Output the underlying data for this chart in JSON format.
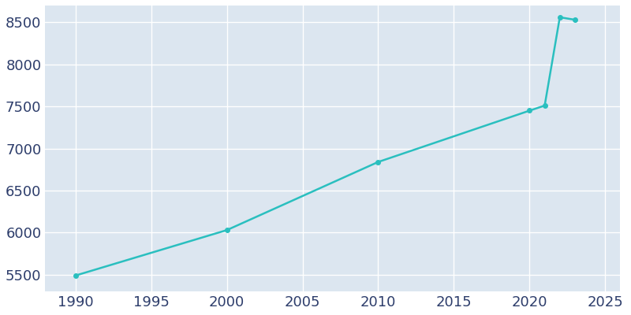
{
  "years": [
    1990,
    2000,
    2010,
    2020,
    2021,
    2022,
    2023
  ],
  "population": [
    5490,
    6030,
    6840,
    7450,
    7510,
    8560,
    8530
  ],
  "line_color": "#2ABFBF",
  "marker": "o",
  "marker_size": 4,
  "background_color": "#ffffff",
  "axes_background": "#dce6f0",
  "grid_color": "#ffffff",
  "tick_color": "#2d3d6b",
  "xlim": [
    1988,
    2026
  ],
  "ylim": [
    5300,
    8700
  ],
  "xticks": [
    1990,
    1995,
    2000,
    2005,
    2010,
    2015,
    2020,
    2025
  ],
  "yticks": [
    5500,
    6000,
    6500,
    7000,
    7500,
    8000,
    8500
  ],
  "tick_fontsize": 13,
  "linewidth": 1.8
}
